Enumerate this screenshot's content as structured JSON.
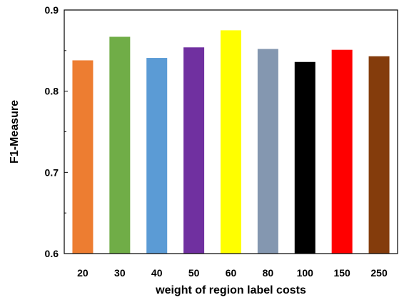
{
  "chart_data": {
    "type": "bar",
    "title": "",
    "xlabel": "weight of region label costs",
    "ylabel": "F1-Measure",
    "ylim": [
      0.6,
      0.9
    ],
    "yticks": [
      "0.6",
      "0.7",
      "0.8",
      "0.9"
    ],
    "grid": false,
    "categories": [
      "20",
      "30",
      "40",
      "50",
      "60",
      "80",
      "100",
      "150",
      "250"
    ],
    "values": [
      0.838,
      0.867,
      0.841,
      0.854,
      0.875,
      0.852,
      0.836,
      0.851,
      0.843
    ],
    "colors": [
      "#ED7D31",
      "#70AD47",
      "#5B9BD5",
      "#7030A0",
      "#FFFF00",
      "#8497B0",
      "#000000",
      "#FF0000",
      "#843C0C"
    ]
  }
}
